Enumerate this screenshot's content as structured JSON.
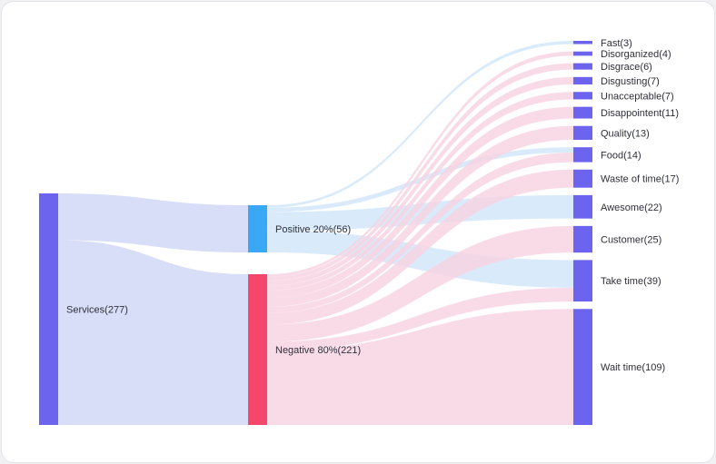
{
  "chart_data": {
    "type": "sankey",
    "title": "",
    "colors": {
      "source": "#6c63ee",
      "positive": "#3aa8f5",
      "negative": "#f5476b",
      "target": "#6c63ee",
      "link_source": "#d6dbf8",
      "link_positive": "#cfe6fa",
      "link_negative": "#f8d2e1"
    },
    "nodes": [
      {
        "id": "services",
        "label": "Services(277)",
        "value": 277,
        "column": 0,
        "color_key": "source"
      },
      {
        "id": "positive",
        "label": "Positive 20%(56)",
        "value": 56,
        "column": 1,
        "color_key": "positive"
      },
      {
        "id": "negative",
        "label": "Negative 80%(221)",
        "value": 221,
        "column": 1,
        "color_key": "negative"
      },
      {
        "id": "fast",
        "label": "Fast(3)",
        "value": 3,
        "column": 2,
        "color_key": "target"
      },
      {
        "id": "disorganized",
        "label": "Disorganized(4)",
        "value": 4,
        "column": 2,
        "color_key": "target"
      },
      {
        "id": "disgrace",
        "label": "Disgrace(6)",
        "value": 6,
        "column": 2,
        "color_key": "target"
      },
      {
        "id": "disgusting",
        "label": "Disgusting(7)",
        "value": 7,
        "column": 2,
        "color_key": "target"
      },
      {
        "id": "unacceptable",
        "label": "Unacceptable(7)",
        "value": 7,
        "column": 2,
        "color_key": "target"
      },
      {
        "id": "disappointent",
        "label": "Disappointent(11)",
        "value": 11,
        "column": 2,
        "color_key": "target"
      },
      {
        "id": "quality",
        "label": "Quality(13)",
        "value": 13,
        "column": 2,
        "color_key": "target"
      },
      {
        "id": "food",
        "label": "Food(14)",
        "value": 14,
        "column": 2,
        "color_key": "target"
      },
      {
        "id": "waste",
        "label": "Waste of time(17)",
        "value": 17,
        "column": 2,
        "color_key": "target"
      },
      {
        "id": "awesome",
        "label": "Awesome(22)",
        "value": 22,
        "column": 2,
        "color_key": "target"
      },
      {
        "id": "customer",
        "label": "Customer(25)",
        "value": 25,
        "column": 2,
        "color_key": "target"
      },
      {
        "id": "taketime",
        "label": "Take time(39)",
        "value": 39,
        "column": 2,
        "color_key": "target"
      },
      {
        "id": "waittime",
        "label": "Wait time(109)",
        "value": 109,
        "column": 2,
        "color_key": "target"
      }
    ],
    "links": [
      {
        "source": "services",
        "target": "positive",
        "value": 56
      },
      {
        "source": "services",
        "target": "negative",
        "value": 221
      },
      {
        "source": "positive",
        "target": "fast",
        "value": 3
      },
      {
        "source": "positive",
        "target": "food",
        "value": 5
      },
      {
        "source": "positive",
        "target": "awesome",
        "value": 22
      },
      {
        "source": "positive",
        "target": "taketime",
        "value": 26
      },
      {
        "source": "negative",
        "target": "disorganized",
        "value": 4
      },
      {
        "source": "negative",
        "target": "disgrace",
        "value": 6
      },
      {
        "source": "negative",
        "target": "disgusting",
        "value": 7
      },
      {
        "source": "negative",
        "target": "unacceptable",
        "value": 7
      },
      {
        "source": "negative",
        "target": "disappointent",
        "value": 11
      },
      {
        "source": "negative",
        "target": "quality",
        "value": 13
      },
      {
        "source": "negative",
        "target": "food",
        "value": 9
      },
      {
        "source": "negative",
        "target": "waste",
        "value": 17
      },
      {
        "source": "negative",
        "target": "customer",
        "value": 25
      },
      {
        "source": "negative",
        "target": "taketime",
        "value": 13
      },
      {
        "source": "negative",
        "target": "waittime",
        "value": 109
      }
    ]
  }
}
